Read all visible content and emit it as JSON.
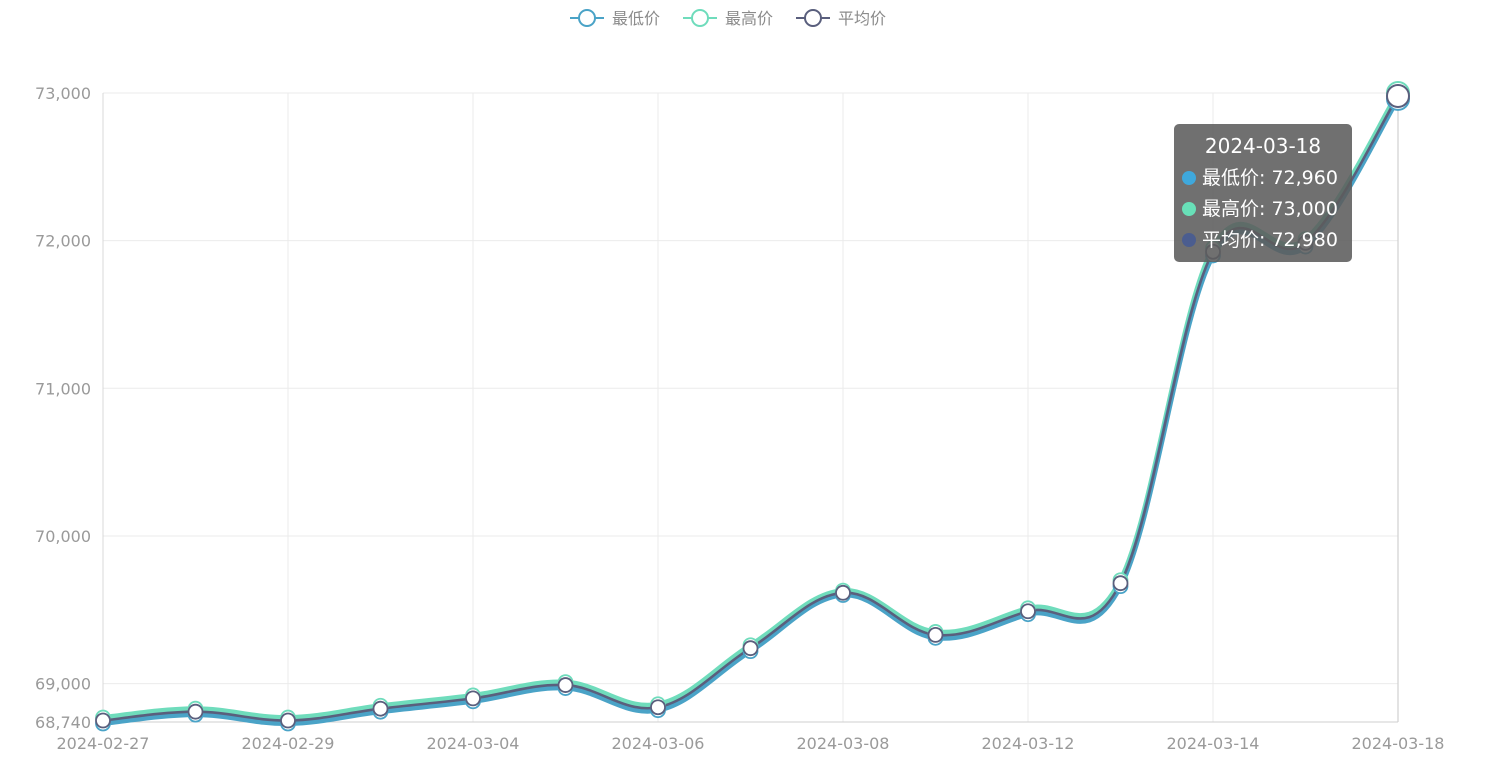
{
  "chart_data": {
    "type": "line",
    "x": [
      "2024-02-27",
      "2024-02-28",
      "2024-02-29",
      "2024-03-01",
      "2024-03-04",
      "2024-03-05",
      "2024-03-06",
      "2024-03-07",
      "2024-03-08",
      "2024-03-11",
      "2024-03-12",
      "2024-03-13",
      "2024-03-14",
      "2024-03-15",
      "2024-03-18"
    ],
    "tick_labels": [
      "2024-02-27",
      "2024-02-29",
      "2024-03-04",
      "2024-03-06",
      "2024-03-08",
      "2024-03-12",
      "2024-03-14",
      "2024-03-18"
    ],
    "series": [
      {
        "name": "最低价",
        "color": "#4aa3c7",
        "values": [
          68730,
          68790,
          68730,
          68810,
          68880,
          68970,
          68820,
          69220,
          69600,
          69310,
          69470,
          69660,
          71900,
          71960,
          72960
        ]
      },
      {
        "name": "最高价",
        "color": "#6fdcbc",
        "values": [
          68770,
          68830,
          68770,
          68850,
          68920,
          69010,
          68860,
          69260,
          69630,
          69350,
          69510,
          69700,
          71950,
          72010,
          73000
        ]
      },
      {
        "name": "平均价",
        "color": "#5a5f7d",
        "values": [
          68750,
          68810,
          68750,
          68830,
          68900,
          68990,
          68840,
          69240,
          69615,
          69330,
          69490,
          69680,
          71925,
          71985,
          72980
        ]
      }
    ],
    "y_ticks": [
      "68,740",
      "69,000",
      "70,000",
      "71,000",
      "72,000",
      "73,000"
    ],
    "ylim": [
      68740,
      73000
    ],
    "legend": "top-center",
    "grid": true,
    "title": "",
    "xlabel": "",
    "ylabel": ""
  },
  "tooltip": {
    "title": "2024-03-18",
    "rows": [
      {
        "label": "最低价: 72,960",
        "color": "#4aa3c7"
      },
      {
        "label": "最高价: 73,000",
        "color": "#6fdcbc"
      },
      {
        "label": "平均价: 72,980",
        "color": "#5a5f7d"
      }
    ]
  }
}
